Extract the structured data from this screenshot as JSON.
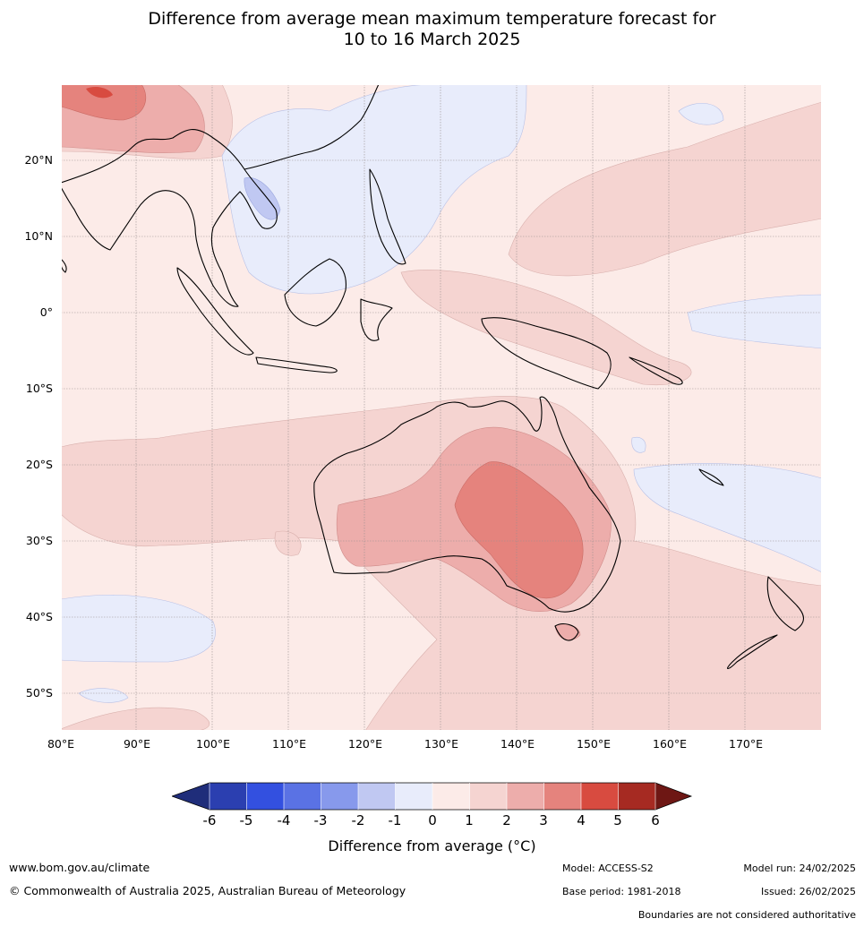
{
  "title": {
    "line1": "Difference from average mean maximum temperature forecast for",
    "line2": "10 to 16 March 2025"
  },
  "map": {
    "latitude_labels": [
      "20°N",
      "10°N",
      "0°",
      "10°S",
      "20°S",
      "30°S",
      "40°S",
      "50°S"
    ],
    "longitude_labels": [
      "80°E",
      "90°E",
      "100°E",
      "110°E",
      "120°E",
      "130°E",
      "140°E",
      "150°E",
      "160°E",
      "170°E"
    ]
  },
  "legend": {
    "title": "Difference from average (°C)",
    "ticks": [
      "-6",
      "-5",
      "-4",
      "-3",
      "-2",
      "-1",
      "0",
      "1",
      "2",
      "3",
      "4",
      "5",
      "6"
    ],
    "colors": {
      "under_min": "#1f2d7a",
      "bins": [
        "#2b3fb0",
        "#3350e0",
        "#5a72e4",
        "#8799ec",
        "#c0c8f2",
        "#e8ecfb",
        "#fcebe8",
        "#f5d4d1",
        "#edadab",
        "#e5837d",
        "#d84b40",
        "#a62a22"
      ],
      "over_max": "#6e1714"
    }
  },
  "footer": {
    "website": "www.bom.gov.au/climate",
    "copyright": "© Commonwealth of Australia 2025, Australian Bureau of Meteorology",
    "model": "Model: ACCESS-S2",
    "base_period": "Base period: 1981-2018",
    "model_run": "Model run: 24/02/2025",
    "issued": "Issued: 26/02/2025",
    "disclaimer": "Boundaries are not considered authoritative"
  }
}
